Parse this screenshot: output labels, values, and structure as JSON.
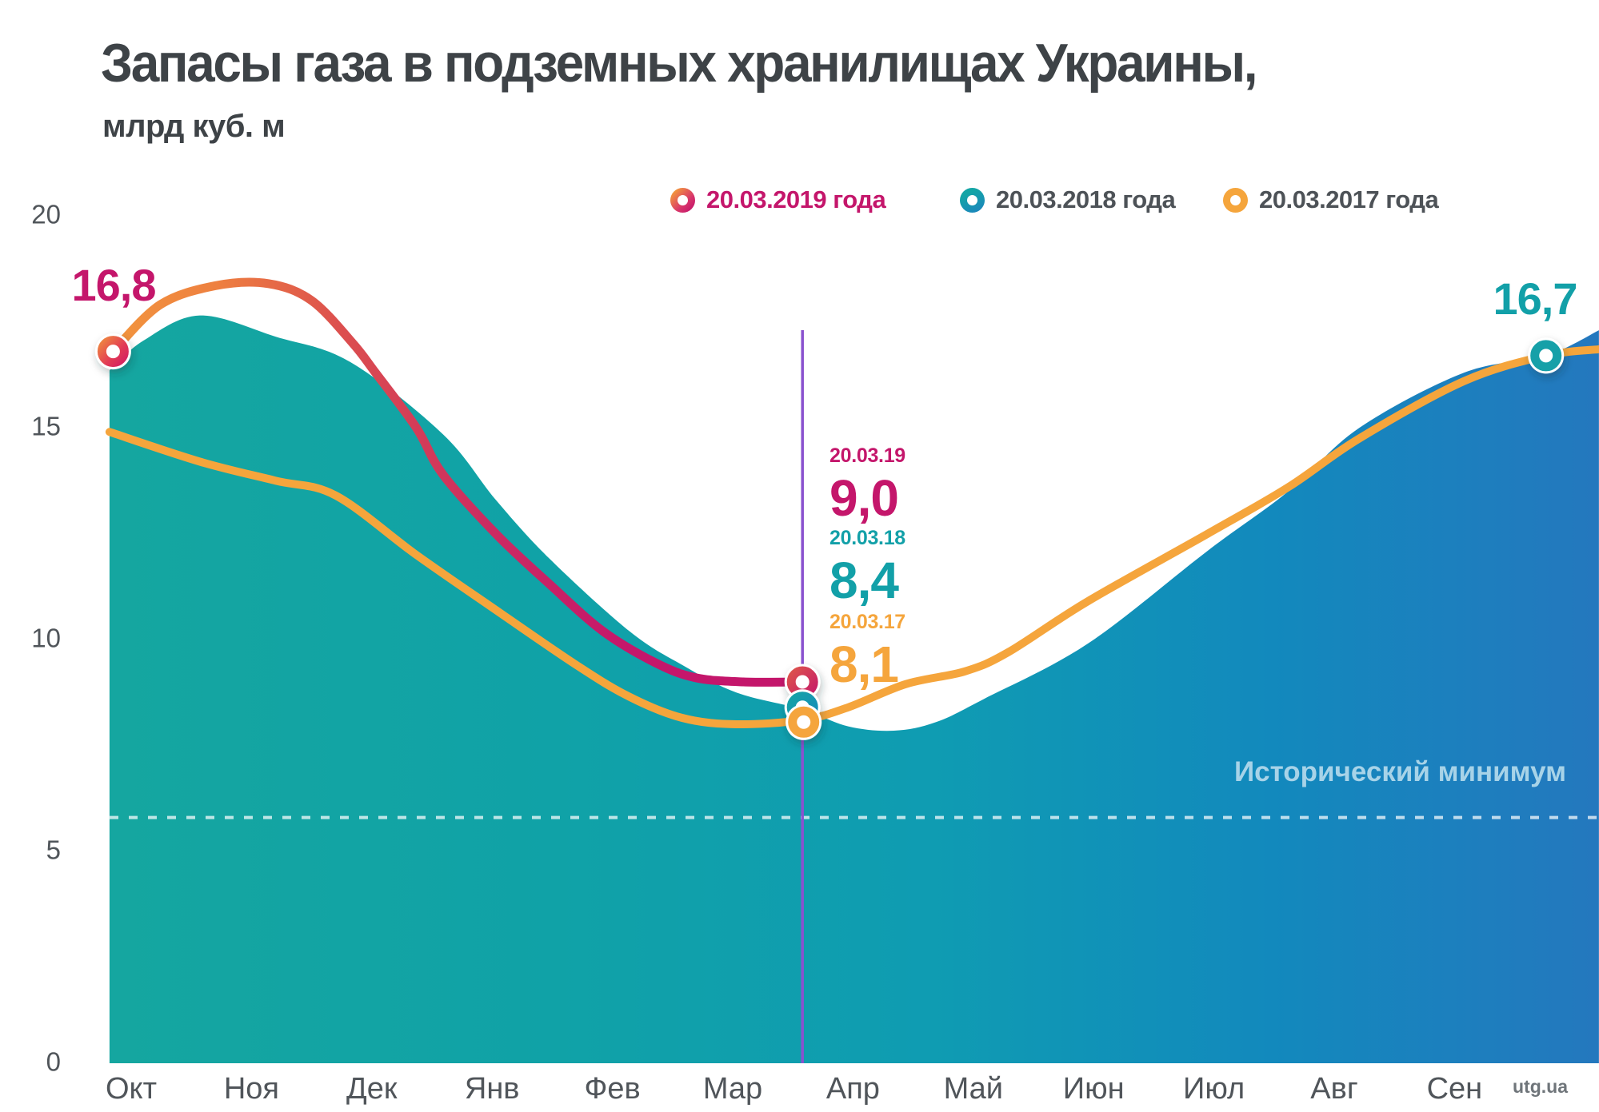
{
  "title": "Запасы газа в подземных хранилищах Украины,",
  "subtitle": "млрд куб. м",
  "watermark": "utg.ua",
  "min_label": "Исторический минимум",
  "legend": [
    {
      "key": "crimson",
      "label": "20.03.2019 года"
    },
    {
      "key": "teal",
      "label": "20.03.2018 года"
    },
    {
      "key": "orange",
      "label": "20.03.2017 года"
    }
  ],
  "callouts": [
    {
      "key": "crimson",
      "date": "20.03.19",
      "value": "9,0"
    },
    {
      "key": "teal",
      "date": "20.03.18",
      "value": "8,4"
    },
    {
      "key": "orange",
      "date": "20.03.17",
      "value": "8,1"
    }
  ],
  "start_label": "16,8",
  "end_label": "16,7",
  "colors": {
    "crimson": "#c4166b",
    "teal": "#12a0a8",
    "orange": "#f5a53c",
    "purple": "#8a52cf",
    "title_gray": "#3e4347",
    "axis_gray": "#50555a",
    "legend_gray": "#4d5257",
    "min_label": "#a7d3e8",
    "watermark_gray": "#6f757a"
  },
  "chart_data": {
    "type": "area",
    "title": "Запасы газа в подземных хранилищах Украины",
    "ylabel": "млрд куб. м",
    "ylim": [
      0,
      20
    ],
    "y_ticks": [
      0,
      5,
      10,
      15,
      20
    ],
    "grid": false,
    "legend_position": "top",
    "categories": [
      "Окт",
      "Ноя",
      "Дек",
      "Янв",
      "Фев",
      "Мар",
      "Апр",
      "Май",
      "Июн",
      "Июл",
      "Авг",
      "Сен"
    ],
    "historical_minimum": 5.8,
    "date_marker_month": 5.58,
    "series": [
      {
        "name": "20.03.2019 года",
        "style": "line-gradient-orange-to-crimson",
        "value_on_20_03": 9.0,
        "start_value": 16.8,
        "peak_value": 18.4,
        "points": [
          [
            -0.15,
            16.8
          ],
          [
            0.24,
            17.9
          ],
          [
            0.7,
            18.35
          ],
          [
            1.14,
            18.4
          ],
          [
            1.5,
            18.0
          ],
          [
            1.84,
            17.0
          ],
          [
            2.03,
            16.3
          ],
          [
            2.37,
            15.0
          ],
          [
            2.59,
            13.9
          ],
          [
            3.03,
            12.5
          ],
          [
            3.48,
            11.3
          ],
          [
            3.92,
            10.2
          ],
          [
            4.36,
            9.45
          ],
          [
            4.69,
            9.1
          ],
          [
            5.09,
            9.0
          ],
          [
            5.58,
            9.0
          ]
        ]
      },
      {
        "name": "20.03.2018 года",
        "style": "area-teal-to-blue-gradient",
        "value_on_20_03": 8.4,
        "end_value": 16.7,
        "points": [
          [
            -0.18,
            16.35
          ],
          [
            0.1,
            17.05
          ],
          [
            0.57,
            17.65
          ],
          [
            1.2,
            17.15
          ],
          [
            1.82,
            16.55
          ],
          [
            2.59,
            14.85
          ],
          [
            3.03,
            13.3
          ],
          [
            3.48,
            11.9
          ],
          [
            4.14,
            10.2
          ],
          [
            4.58,
            9.4
          ],
          [
            5.03,
            8.75
          ],
          [
            5.58,
            8.35
          ],
          [
            5.96,
            7.95
          ],
          [
            6.34,
            7.85
          ],
          [
            6.69,
            8.05
          ],
          [
            7.09,
            8.6
          ],
          [
            7.95,
            9.9
          ],
          [
            8.95,
            12.1
          ],
          [
            9.62,
            13.5
          ],
          [
            10.21,
            15.0
          ],
          [
            11.08,
            16.3
          ],
          [
            11.76,
            16.7
          ],
          [
            12.2,
            17.3
          ]
        ]
      },
      {
        "name": "20.03.2017 года",
        "style": "line-orange",
        "value_on_20_03": 8.1,
        "points": [
          [
            -0.18,
            14.9
          ],
          [
            0.57,
            14.2
          ],
          [
            1.2,
            13.75
          ],
          [
            1.7,
            13.4
          ],
          [
            2.37,
            12.0
          ],
          [
            3.03,
            10.7
          ],
          [
            3.7,
            9.4
          ],
          [
            4.14,
            8.65
          ],
          [
            4.58,
            8.15
          ],
          [
            5.03,
            8.0
          ],
          [
            5.58,
            8.1
          ],
          [
            5.96,
            8.4
          ],
          [
            6.44,
            8.95
          ],
          [
            6.93,
            9.25
          ],
          [
            7.29,
            9.7
          ],
          [
            7.95,
            10.9
          ],
          [
            8.95,
            12.5
          ],
          [
            9.62,
            13.6
          ],
          [
            10.21,
            14.75
          ],
          [
            11.08,
            16.1
          ],
          [
            11.76,
            16.7
          ],
          [
            12.2,
            16.85
          ]
        ]
      }
    ],
    "markers": [
      {
        "series": "20.03.2019 года",
        "month": -0.15,
        "value": 16.8,
        "label": "16,8"
      },
      {
        "series": "20.03.2019 года",
        "month": 5.58,
        "value": 9.0,
        "label": "9,0"
      },
      {
        "series": "20.03.2018 года",
        "month": 5.58,
        "value": 8.4,
        "label": "8,4"
      },
      {
        "series": "20.03.2017 года",
        "month": 5.59,
        "value": 8.05,
        "label": "8,1"
      },
      {
        "series": "20.03.2018 года",
        "month": 11.76,
        "value": 16.7,
        "label": "16,7"
      }
    ]
  }
}
